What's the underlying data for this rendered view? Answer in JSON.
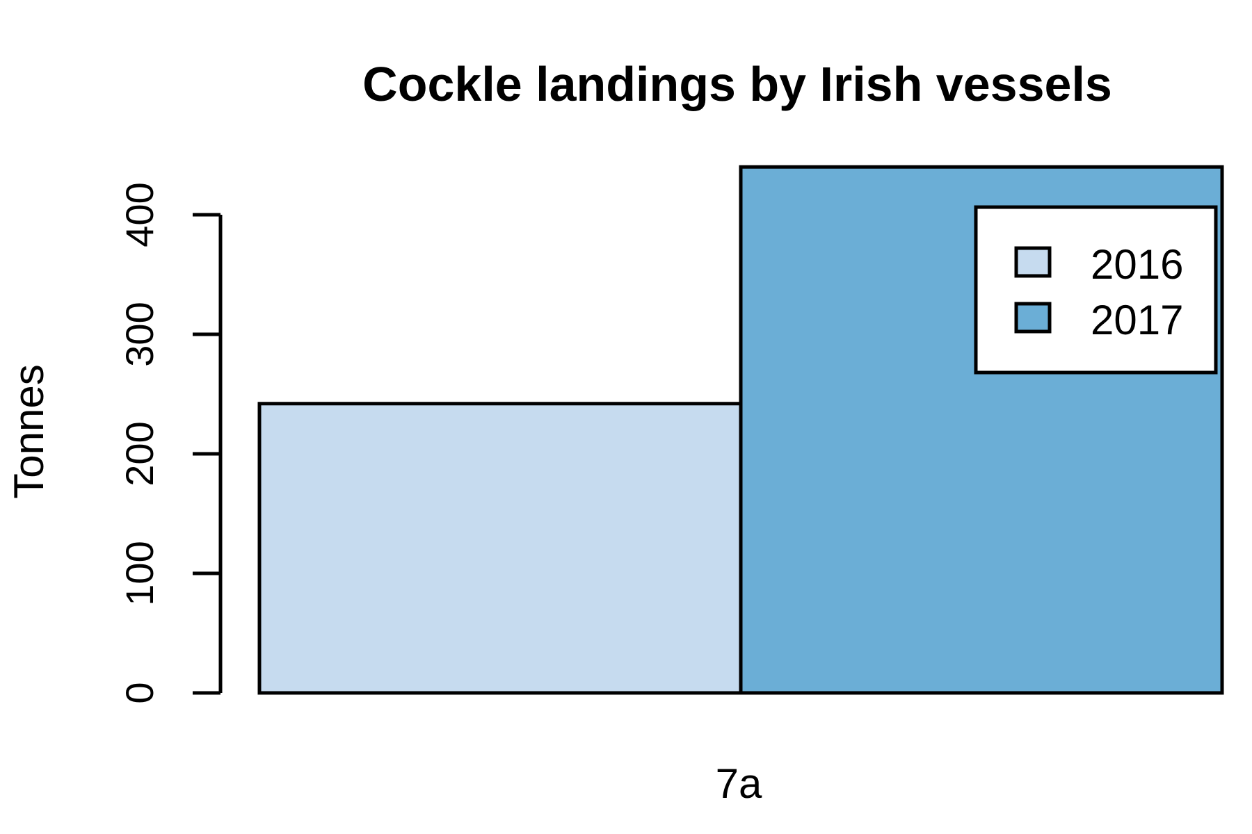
{
  "chart_data": {
    "type": "bar",
    "title": "Cockle landings by Irish vessels",
    "xlabel": "",
    "ylabel": "Tonnes",
    "categories": [
      "7a"
    ],
    "series": [
      {
        "name": "2016",
        "values": [
          242
        ],
        "color": "#c6dbef"
      },
      {
        "name": "2017",
        "values": [
          440
        ],
        "color": "#6baed6"
      }
    ],
    "ylim": [
      0,
      440
    ],
    "yticks": [
      0,
      100,
      200,
      300,
      400
    ],
    "legend_position": "top-right",
    "grid": false
  }
}
